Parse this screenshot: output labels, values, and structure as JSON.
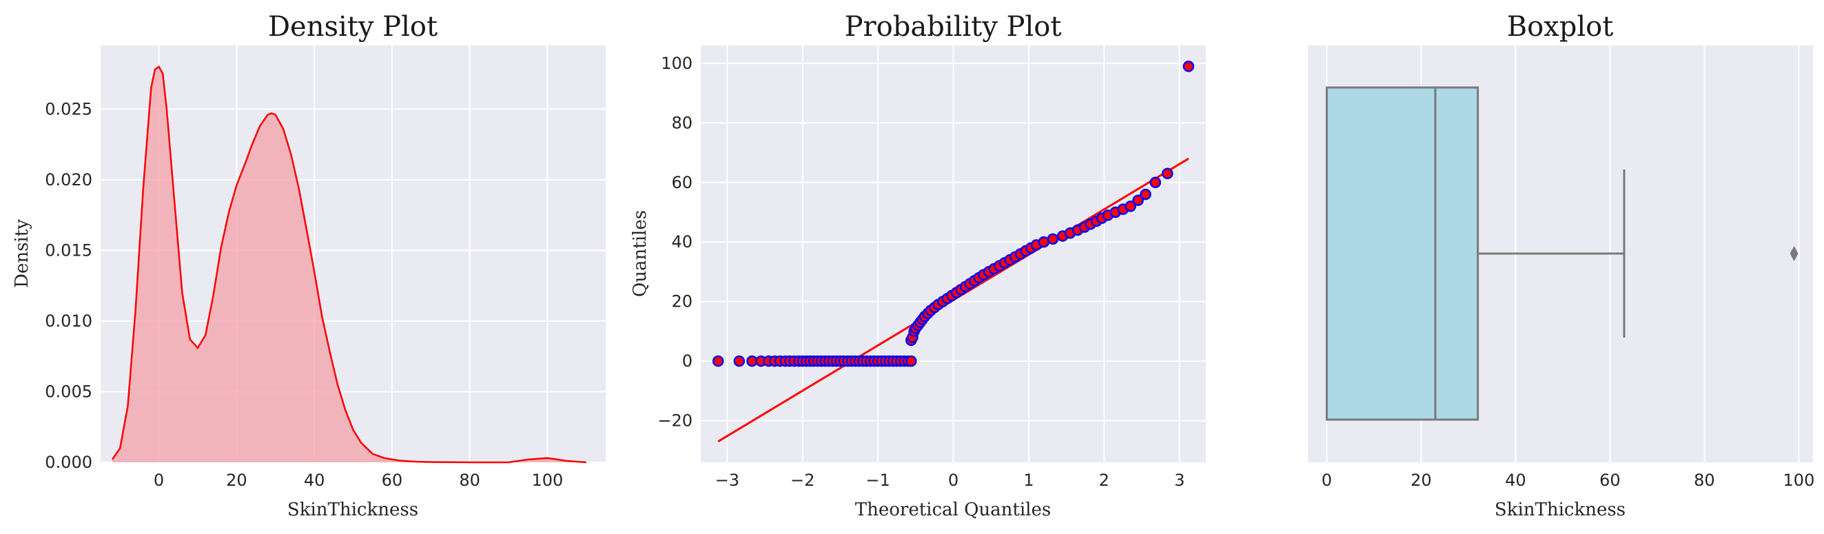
{
  "chart_data": [
    {
      "type": "area",
      "title": "Density Plot",
      "xlabel": "SkinThickness",
      "ylabel": "Density",
      "xlim": [
        -15,
        115
      ],
      "ylim": [
        0,
        0.0295
      ],
      "xticks": [
        0,
        20,
        40,
        60,
        80,
        100
      ],
      "yticks": [
        0.0,
        0.005,
        0.01,
        0.015,
        0.02,
        0.025
      ],
      "ytick_labels": [
        "0.000",
        "0.005",
        "0.010",
        "0.015",
        "0.020",
        "0.025"
      ],
      "grid": true,
      "series": [
        {
          "x": [
            -12,
            -10,
            -8,
            -6,
            -4,
            -2,
            -1,
            0,
            1,
            2,
            4,
            6,
            8,
            10,
            12,
            14,
            16,
            18,
            20,
            22,
            24,
            26,
            28,
            29,
            30,
            32,
            34,
            36,
            38,
            40,
            42,
            44,
            46,
            48,
            50,
            52,
            55,
            58,
            62,
            66,
            70,
            80,
            90,
            95,
            100,
            105,
            110
          ],
          "y": [
            0.0002,
            0.001,
            0.004,
            0.0108,
            0.0195,
            0.0265,
            0.0278,
            0.028,
            0.0275,
            0.025,
            0.0185,
            0.012,
            0.0087,
            0.0081,
            0.009,
            0.0118,
            0.0152,
            0.0177,
            0.0196,
            0.021,
            0.0225,
            0.0238,
            0.0246,
            0.0247,
            0.0246,
            0.0236,
            0.0218,
            0.0194,
            0.0165,
            0.0135,
            0.0103,
            0.0078,
            0.0055,
            0.0037,
            0.0023,
            0.0014,
            0.0006,
            0.0003,
            0.00012,
            5e-05,
            2e-05,
            0.0,
            0.0,
            0.0002,
            0.0003,
            0.0001,
            0.0
          ]
        }
      ],
      "colors": {
        "line": "#ff0000",
        "fill": "#f4a6ad"
      }
    },
    {
      "type": "scatter",
      "title": "Probability Plot",
      "xlabel": "Theoretical Quantiles",
      "ylabel": "Quantiles",
      "xlim": [
        -3.35,
        3.35
      ],
      "ylim": [
        -34,
        106
      ],
      "xticks": [
        -3,
        -2,
        -1,
        0,
        1,
        2,
        3
      ],
      "xtick_labels": [
        "−3",
        "−2",
        "−1",
        "0",
        "1",
        "2",
        "3"
      ],
      "yticks": [
        -20,
        0,
        20,
        40,
        60,
        80,
        100
      ],
      "ytick_labels": [
        "−20",
        "0",
        "20",
        "40",
        "60",
        "80",
        "100"
      ],
      "grid": true,
      "fit_line": {
        "x": [
          -3.12,
          3.12
        ],
        "y": [
          -27,
          68
        ]
      },
      "zero_points_x": [
        -3.12,
        -2.84,
        -2.67,
        -2.55,
        -2.45,
        -2.37,
        -2.3,
        -2.23,
        -2.17,
        -2.11,
        -2.05,
        -2.0,
        -1.95,
        -1.9,
        -1.85,
        -1.8,
        -1.75,
        -1.7,
        -1.65,
        -1.6,
        -1.55,
        -1.5,
        -1.45,
        -1.4,
        -1.35,
        -1.3,
        -1.25,
        -1.2,
        -1.15,
        -1.1,
        -1.05,
        -1.0,
        -0.95,
        -0.9,
        -0.85,
        -0.8,
        -0.75,
        -0.7,
        -0.65,
        -0.6,
        -0.56
      ],
      "points": [
        {
          "x": -0.56,
          "y": 7
        },
        {
          "x": -0.54,
          "y": 8
        },
        {
          "x": -0.52,
          "y": 10
        },
        {
          "x": -0.5,
          "y": 11
        },
        {
          "x": -0.47,
          "y": 12
        },
        {
          "x": -0.44,
          "y": 13
        },
        {
          "x": -0.41,
          "y": 14
        },
        {
          "x": -0.38,
          "y": 15
        },
        {
          "x": -0.34,
          "y": 16
        },
        {
          "x": -0.3,
          "y": 17
        },
        {
          "x": -0.25,
          "y": 18
        },
        {
          "x": -0.2,
          "y": 19
        },
        {
          "x": -0.14,
          "y": 20
        },
        {
          "x": -0.08,
          "y": 21
        },
        {
          "x": -0.02,
          "y": 22
        },
        {
          "x": 0.04,
          "y": 23
        },
        {
          "x": 0.1,
          "y": 24
        },
        {
          "x": 0.16,
          "y": 25
        },
        {
          "x": 0.22,
          "y": 26
        },
        {
          "x": 0.28,
          "y": 27
        },
        {
          "x": 0.34,
          "y": 28
        },
        {
          "x": 0.4,
          "y": 29
        },
        {
          "x": 0.47,
          "y": 30
        },
        {
          "x": 0.54,
          "y": 31
        },
        {
          "x": 0.61,
          "y": 32
        },
        {
          "x": 0.68,
          "y": 33
        },
        {
          "x": 0.75,
          "y": 34
        },
        {
          "x": 0.82,
          "y": 35
        },
        {
          "x": 0.89,
          "y": 36
        },
        {
          "x": 0.96,
          "y": 37
        },
        {
          "x": 1.03,
          "y": 38
        },
        {
          "x": 1.1,
          "y": 39
        },
        {
          "x": 1.2,
          "y": 40
        },
        {
          "x": 1.32,
          "y": 41
        },
        {
          "x": 1.45,
          "y": 42
        },
        {
          "x": 1.55,
          "y": 43
        },
        {
          "x": 1.65,
          "y": 44
        },
        {
          "x": 1.74,
          "y": 45
        },
        {
          "x": 1.82,
          "y": 46
        },
        {
          "x": 1.9,
          "y": 47
        },
        {
          "x": 1.97,
          "y": 48
        },
        {
          "x": 2.05,
          "y": 49
        },
        {
          "x": 2.15,
          "y": 50
        },
        {
          "x": 2.25,
          "y": 51
        },
        {
          "x": 2.35,
          "y": 52
        },
        {
          "x": 2.45,
          "y": 54
        },
        {
          "x": 2.55,
          "y": 56
        },
        {
          "x": 2.68,
          "y": 60
        },
        {
          "x": 2.84,
          "y": 63
        },
        {
          "x": 3.12,
          "y": 99
        }
      ],
      "colors": {
        "marker_face": "#ff0000",
        "marker_edge": "#0000ff",
        "fit": "#ff0000"
      }
    },
    {
      "type": "box",
      "title": "Boxplot",
      "xlabel": "SkinThickness",
      "xlim": [
        -4,
        103
      ],
      "xticks": [
        0,
        20,
        40,
        60,
        80,
        100
      ],
      "grid": true,
      "box": {
        "min": 0,
        "q1": 0,
        "median": 23,
        "q3": 32,
        "whisker_high": 63,
        "outliers": [
          99
        ]
      },
      "colors": {
        "box_fill": "#add8e6",
        "box_edge": "#7a7a7a"
      }
    }
  ]
}
